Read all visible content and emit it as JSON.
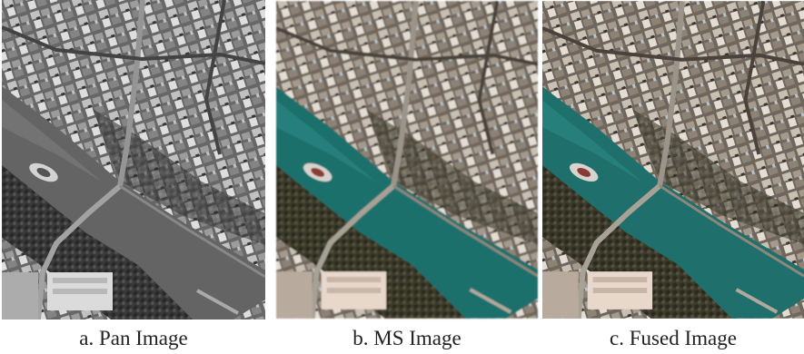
{
  "panels": [
    {
      "caption": "a. Pan Image"
    },
    {
      "caption": "b. MS Image"
    },
    {
      "caption": "c. Fused Image"
    }
  ]
}
